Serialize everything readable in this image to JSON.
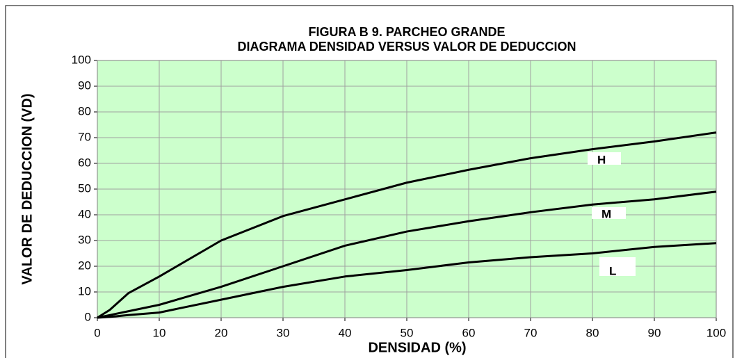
{
  "chart_data": {
    "type": "line",
    "title": "FIGURA B 9. PARCHEO GRANDE",
    "subtitle": "DIAGRAMA DENSIDAD VERSUS VALOR DE DEDUCCION",
    "x_label": "DENSIDAD  (%)",
    "y_label": "VALOR DE DEDUCCION  (VD)",
    "x": [
      0,
      2,
      5,
      10,
      20,
      30,
      40,
      50,
      60,
      70,
      80,
      90,
      100
    ],
    "series": [
      {
        "name": "H",
        "color": "#000000",
        "values": [
          0,
          3,
          9.5,
          16,
          30,
          39.5,
          46,
          52.5,
          57.5,
          62,
          65.5,
          68.5,
          72
        ]
      },
      {
        "name": "M",
        "color": "#000000",
        "values": [
          0,
          1,
          2.5,
          5,
          12,
          20,
          28,
          33.5,
          37.5,
          41,
          44,
          46,
          49
        ]
      },
      {
        "name": "L",
        "color": "#000000",
        "values": [
          0,
          0.3,
          1,
          2,
          7,
          12,
          16,
          18.5,
          21.5,
          23.5,
          25,
          27.5,
          29
        ]
      }
    ],
    "xlim": [
      0,
      100
    ],
    "xticks": [
      0,
      10,
      20,
      30,
      40,
      50,
      60,
      70,
      80,
      90,
      100
    ],
    "ylim": [
      0,
      100
    ],
    "yticks": [
      0,
      10,
      20,
      30,
      40,
      50,
      60,
      70,
      80,
      90,
      100
    ],
    "grid": true,
    "plot_background": "#ccffcc"
  }
}
